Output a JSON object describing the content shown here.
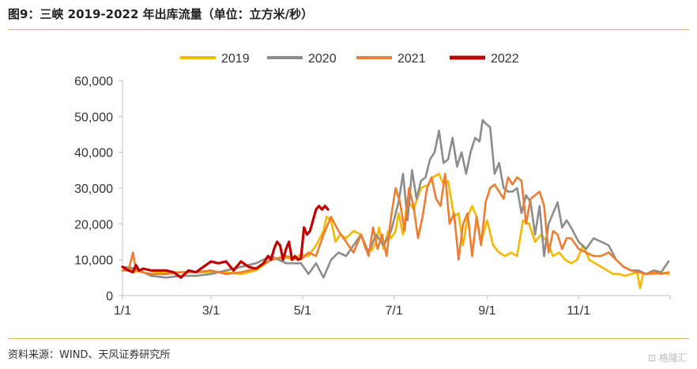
{
  "header": {
    "title": "图9：三峡 2019-2022 年出库流量（单位：立方米/秒）"
  },
  "footer": {
    "source": "资料来源：WIND、天风证券研究所",
    "watermark": "格隆汇"
  },
  "chart_data": {
    "type": "line",
    "title": "",
    "xlabel": "",
    "ylabel": "",
    "ylim": [
      0,
      60000
    ],
    "xlim": [
      1,
      366
    ],
    "yticks": [
      "0",
      "10,000",
      "20,000",
      "30,000",
      "40,000",
      "50,000",
      "60,000"
    ],
    "ytick_values": [
      0,
      10000,
      20000,
      30000,
      40000,
      50000,
      60000
    ],
    "xticks": [
      {
        "label": "1/1",
        "day": 1
      },
      {
        "label": "3/1",
        "day": 60
      },
      {
        "label": "5/1",
        "day": 121
      },
      {
        "label": "7/1",
        "day": 182
      },
      {
        "label": "9/1",
        "day": 244
      },
      {
        "label": "11/1",
        "day": 305
      }
    ],
    "grid": false,
    "legend": "top-center",
    "series": [
      {
        "name": "2019",
        "color": "#F5B800",
        "x": [
          1,
          6,
          9,
          12,
          18,
          25,
          35,
          45,
          55,
          60,
          70,
          80,
          90,
          100,
          110,
          115,
          120,
          125,
          130,
          135,
          137,
          140,
          143,
          146,
          150,
          155,
          160,
          163,
          167,
          170,
          172,
          175,
          178,
          180,
          183,
          185,
          188,
          191,
          195,
          200,
          205,
          208,
          212,
          215,
          218,
          222,
          225,
          228,
          231,
          234,
          237,
          240,
          244,
          248,
          252,
          256,
          260,
          264,
          268,
          272,
          276,
          280,
          284,
          288,
          292,
          296,
          300,
          304,
          308,
          312,
          316,
          320,
          324,
          328,
          332,
          336,
          340,
          344,
          346,
          348,
          352,
          356,
          360,
          365
        ],
        "y": [
          7000,
          7500,
          6500,
          7000,
          6000,
          6500,
          6500,
          6500,
          6500,
          6500,
          6500,
          6000,
          7000,
          10000,
          10500,
          10000,
          11500,
          11000,
          14000,
          18000,
          22000,
          21000,
          15000,
          17000,
          16000,
          18000,
          17000,
          13000,
          12500,
          15000,
          19000,
          13000,
          18000,
          16000,
          18000,
          23000,
          17000,
          27000,
          24000,
          30000,
          31000,
          33000,
          34000,
          31000,
          32000,
          22000,
          23000,
          14000,
          22000,
          25000,
          22000,
          15000,
          21000,
          14000,
          12000,
          11000,
          12000,
          11000,
          21000,
          20000,
          15000,
          17000,
          15000,
          11000,
          12000,
          10000,
          9000,
          10000,
          14000,
          10000,
          9000,
          8000,
          7000,
          6000,
          6000,
          5500,
          6000,
          6500,
          2000,
          6000,
          6000,
          6000,
          6500,
          6000
        ]
      },
      {
        "name": "2020",
        "color": "#8C8C8C",
        "x": [
          1,
          10,
          20,
          30,
          40,
          50,
          60,
          70,
          80,
          90,
          100,
          110,
          120,
          125,
          130,
          135,
          140,
          145,
          150,
          155,
          160,
          165,
          170,
          175,
          180,
          185,
          188,
          191,
          194,
          197,
          200,
          203,
          206,
          209,
          212,
          215,
          218,
          221,
          224,
          227,
          230,
          233,
          236,
          239,
          241,
          243,
          246,
          249,
          252,
          255,
          258,
          261,
          264,
          267,
          270,
          273,
          276,
          279,
          282,
          285,
          288,
          291,
          294,
          297,
          300,
          305,
          310,
          315,
          320,
          325,
          330,
          335,
          340,
          345,
          350,
          355,
          360,
          365
        ],
        "y": [
          8000,
          7500,
          5500,
          5000,
          5500,
          5500,
          6000,
          7000,
          8000,
          9000,
          11000,
          9000,
          9000,
          6000,
          9000,
          5000,
          10000,
          12000,
          11000,
          14000,
          17000,
          12000,
          17000,
          14000,
          18000,
          26000,
          34000,
          21000,
          35000,
          27000,
          32000,
          33000,
          38000,
          40000,
          46000,
          37000,
          38000,
          44000,
          36000,
          40000,
          34000,
          40000,
          44000,
          43000,
          49000,
          48000,
          47000,
          34000,
          37000,
          30000,
          29000,
          29000,
          30000,
          23000,
          28000,
          26000,
          17000,
          25000,
          11000,
          20000,
          23000,
          26000,
          19000,
          21000,
          19000,
          15000,
          13000,
          16000,
          15000,
          14000,
          10000,
          8000,
          7000,
          7000,
          6000,
          7000,
          6500,
          9500
        ]
      },
      {
        "name": "2021",
        "color": "#ED7D31",
        "x": [
          1,
          5,
          8,
          10,
          14,
          20,
          30,
          40,
          50,
          60,
          70,
          80,
          90,
          100,
          110,
          120,
          125,
          130,
          135,
          140,
          145,
          150,
          155,
          160,
          165,
          168,
          171,
          174,
          177,
          180,
          183,
          186,
          189,
          192,
          195,
          198,
          201,
          204,
          207,
          210,
          213,
          216,
          219,
          222,
          225,
          228,
          231,
          234,
          237,
          240,
          243,
          246,
          249,
          252,
          255,
          258,
          261,
          264,
          267,
          270,
          273,
          276,
          279,
          282,
          285,
          288,
          291,
          294,
          297,
          300,
          305,
          310,
          315,
          320,
          325,
          330,
          335,
          340,
          345,
          350,
          355,
          360,
          365
        ],
        "y": [
          7000,
          7000,
          12000,
          7000,
          6500,
          6000,
          6000,
          6500,
          6500,
          7000,
          6000,
          6500,
          7500,
          10000,
          11000,
          10000,
          12000,
          11000,
          17000,
          22000,
          18000,
          15000,
          12000,
          17000,
          11000,
          19000,
          13000,
          17000,
          11000,
          22000,
          30000,
          26000,
          18000,
          30000,
          25000,
          16000,
          22000,
          30000,
          33000,
          27000,
          25000,
          34000,
          20000,
          23000,
          10000,
          20000,
          23000,
          11000,
          22000,
          14000,
          26000,
          30000,
          31000,
          29000,
          27000,
          33000,
          31000,
          33000,
          32000,
          20000,
          27000,
          28000,
          29000,
          25000,
          12000,
          18000,
          17000,
          13000,
          16000,
          16000,
          13000,
          12000,
          11000,
          11000,
          12000,
          10000,
          8000,
          7000,
          6500,
          6000,
          6500,
          6000,
          6500
        ]
      },
      {
        "name": "2022",
        "color": "#C00000",
        "x": [
          1,
          5,
          8,
          10,
          12,
          15,
          20,
          25,
          30,
          35,
          40,
          45,
          50,
          55,
          60,
          65,
          70,
          75,
          80,
          85,
          90,
          95,
          98,
          100,
          102,
          104,
          106,
          108,
          110,
          112,
          114,
          116,
          118,
          120,
          122,
          124,
          126,
          128,
          130,
          132,
          134,
          136,
          138
        ],
        "y": [
          8000,
          7000,
          6500,
          8500,
          7000,
          7500,
          7000,
          7000,
          7000,
          6500,
          5000,
          7000,
          6500,
          8000,
          9500,
          9000,
          9500,
          7000,
          9500,
          8000,
          7500,
          9000,
          11000,
          10000,
          13000,
          15000,
          14000,
          10000,
          13000,
          15000,
          10000,
          11000,
          10000,
          10500,
          19000,
          17000,
          18000,
          21000,
          24000,
          25000,
          24000,
          25000,
          24000
        ]
      }
    ]
  }
}
